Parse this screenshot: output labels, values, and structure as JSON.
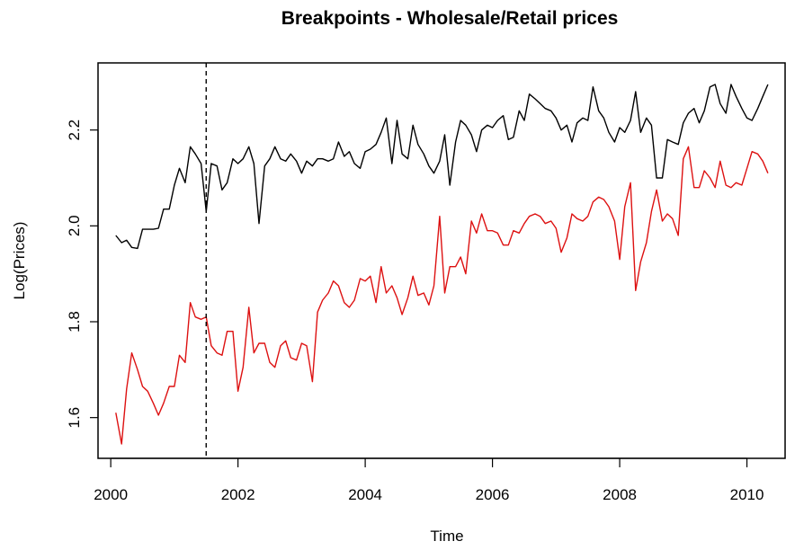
{
  "chart_data": {
    "type": "line",
    "title": "Breakpoints - Wholesale/Retail prices",
    "xlabel": "Time",
    "ylabel": "Log(Prices)",
    "xlim": [
      1999.8,
      2010.6
    ],
    "ylim": [
      1.515,
      2.34
    ],
    "x_ticks": [
      "2000",
      "2002",
      "2004",
      "2006",
      "2008",
      "2010"
    ],
    "y_ticks": [
      "1.6",
      "1.8",
      "2.0",
      "2.2"
    ],
    "grid": false,
    "legend": "none",
    "breakpoint": 2001.5,
    "breakpoint_style": "dashed",
    "series": [
      {
        "color": "#000000",
        "points": [
          [
            2000.08,
            1.98
          ],
          [
            2000.17,
            1.965
          ],
          [
            2000.25,
            1.97
          ],
          [
            2000.33,
            1.955
          ],
          [
            2000.42,
            1.953
          ],
          [
            2000.5,
            1.993
          ],
          [
            2000.58,
            1.993
          ],
          [
            2000.67,
            1.993
          ],
          [
            2000.75,
            1.995
          ],
          [
            2000.83,
            2.035
          ],
          [
            2000.92,
            2.035
          ],
          [
            2001.0,
            2.085
          ],
          [
            2001.08,
            2.12
          ],
          [
            2001.17,
            2.09
          ],
          [
            2001.25,
            2.165
          ],
          [
            2001.33,
            2.15
          ],
          [
            2001.42,
            2.13
          ],
          [
            2001.5,
            2.03
          ],
          [
            2001.58,
            2.13
          ],
          [
            2001.67,
            2.125
          ],
          [
            2001.75,
            2.075
          ],
          [
            2001.83,
            2.09
          ],
          [
            2001.92,
            2.14
          ],
          [
            2002.0,
            2.13
          ],
          [
            2002.08,
            2.14
          ],
          [
            2002.17,
            2.165
          ],
          [
            2002.25,
            2.13
          ],
          [
            2002.33,
            2.005
          ],
          [
            2002.42,
            2.125
          ],
          [
            2002.5,
            2.14
          ],
          [
            2002.58,
            2.165
          ],
          [
            2002.67,
            2.14
          ],
          [
            2002.75,
            2.135
          ],
          [
            2002.83,
            2.15
          ],
          [
            2002.92,
            2.135
          ],
          [
            2003.0,
            2.11
          ],
          [
            2003.08,
            2.135
          ],
          [
            2003.17,
            2.125
          ],
          [
            2003.25,
            2.14
          ],
          [
            2003.33,
            2.14
          ],
          [
            2003.42,
            2.135
          ],
          [
            2003.5,
            2.14
          ],
          [
            2003.58,
            2.175
          ],
          [
            2003.67,
            2.145
          ],
          [
            2003.75,
            2.155
          ],
          [
            2003.83,
            2.13
          ],
          [
            2003.92,
            2.12
          ],
          [
            2004.0,
            2.155
          ],
          [
            2004.08,
            2.16
          ],
          [
            2004.17,
            2.17
          ],
          [
            2004.25,
            2.195
          ],
          [
            2004.33,
            2.225
          ],
          [
            2004.42,
            2.13
          ],
          [
            2004.5,
            2.22
          ],
          [
            2004.58,
            2.15
          ],
          [
            2004.67,
            2.14
          ],
          [
            2004.75,
            2.21
          ],
          [
            2004.83,
            2.17
          ],
          [
            2004.92,
            2.15
          ],
          [
            2005.0,
            2.125
          ],
          [
            2005.08,
            2.11
          ],
          [
            2005.17,
            2.135
          ],
          [
            2005.25,
            2.19
          ],
          [
            2005.33,
            2.085
          ],
          [
            2005.42,
            2.175
          ],
          [
            2005.5,
            2.22
          ],
          [
            2005.58,
            2.21
          ],
          [
            2005.67,
            2.19
          ],
          [
            2005.75,
            2.155
          ],
          [
            2005.83,
            2.2
          ],
          [
            2005.92,
            2.21
          ],
          [
            2006.0,
            2.205
          ],
          [
            2006.08,
            2.22
          ],
          [
            2006.17,
            2.23
          ],
          [
            2006.25,
            2.18
          ],
          [
            2006.33,
            2.185
          ],
          [
            2006.42,
            2.24
          ],
          [
            2006.5,
            2.22
          ],
          [
            2006.58,
            2.275
          ],
          [
            2006.67,
            2.265
          ],
          [
            2006.75,
            2.255
          ],
          [
            2006.83,
            2.245
          ],
          [
            2006.92,
            2.24
          ],
          [
            2007.0,
            2.225
          ],
          [
            2007.08,
            2.2
          ],
          [
            2007.17,
            2.21
          ],
          [
            2007.25,
            2.175
          ],
          [
            2007.33,
            2.215
          ],
          [
            2007.42,
            2.225
          ],
          [
            2007.5,
            2.22
          ],
          [
            2007.58,
            2.29
          ],
          [
            2007.67,
            2.24
          ],
          [
            2007.75,
            2.225
          ],
          [
            2007.83,
            2.195
          ],
          [
            2007.92,
            2.175
          ],
          [
            2008.0,
            2.205
          ],
          [
            2008.08,
            2.195
          ],
          [
            2008.17,
            2.22
          ],
          [
            2008.25,
            2.28
          ],
          [
            2008.33,
            2.195
          ],
          [
            2008.42,
            2.225
          ],
          [
            2008.5,
            2.21
          ],
          [
            2008.58,
            2.1
          ],
          [
            2008.67,
            2.1
          ],
          [
            2008.75,
            2.18
          ],
          [
            2008.83,
            2.175
          ],
          [
            2008.92,
            2.17
          ],
          [
            2009.0,
            2.215
          ],
          [
            2009.08,
            2.235
          ],
          [
            2009.17,
            2.245
          ],
          [
            2009.25,
            2.215
          ],
          [
            2009.33,
            2.24
          ],
          [
            2009.42,
            2.29
          ],
          [
            2009.5,
            2.295
          ],
          [
            2009.58,
            2.255
          ],
          [
            2009.67,
            2.235
          ],
          [
            2009.75,
            2.295
          ],
          [
            2009.83,
            2.27
          ],
          [
            2009.92,
            2.245
          ],
          [
            2010.0,
            2.225
          ],
          [
            2010.08,
            2.22
          ],
          [
            2010.17,
            2.245
          ],
          [
            2010.25,
            2.27
          ],
          [
            2010.33,
            2.295
          ]
        ]
      },
      {
        "color": "#dd1111",
        "points": [
          [
            2000.08,
            1.61
          ],
          [
            2000.17,
            1.545
          ],
          [
            2000.25,
            1.66
          ],
          [
            2000.33,
            1.735
          ],
          [
            2000.42,
            1.7
          ],
          [
            2000.5,
            1.665
          ],
          [
            2000.58,
            1.655
          ],
          [
            2000.67,
            1.63
          ],
          [
            2000.75,
            1.605
          ],
          [
            2000.83,
            1.63
          ],
          [
            2000.92,
            1.665
          ],
          [
            2001.0,
            1.665
          ],
          [
            2001.08,
            1.73
          ],
          [
            2001.17,
            1.715
          ],
          [
            2001.25,
            1.84
          ],
          [
            2001.33,
            1.81
          ],
          [
            2001.42,
            1.805
          ],
          [
            2001.5,
            1.81
          ],
          [
            2001.58,
            1.75
          ],
          [
            2001.67,
            1.735
          ],
          [
            2001.75,
            1.73
          ],
          [
            2001.83,
            1.78
          ],
          [
            2001.92,
            1.78
          ],
          [
            2002.0,
            1.655
          ],
          [
            2002.08,
            1.705
          ],
          [
            2002.17,
            1.83
          ],
          [
            2002.25,
            1.735
          ],
          [
            2002.33,
            1.755
          ],
          [
            2002.42,
            1.755
          ],
          [
            2002.5,
            1.715
          ],
          [
            2002.58,
            1.705
          ],
          [
            2002.67,
            1.75
          ],
          [
            2002.75,
            1.76
          ],
          [
            2002.83,
            1.725
          ],
          [
            2002.92,
            1.72
          ],
          [
            2003.0,
            1.755
          ],
          [
            2003.08,
            1.75
          ],
          [
            2003.17,
            1.675
          ],
          [
            2003.25,
            1.82
          ],
          [
            2003.33,
            1.845
          ],
          [
            2003.42,
            1.86
          ],
          [
            2003.5,
            1.885
          ],
          [
            2003.58,
            1.875
          ],
          [
            2003.67,
            1.84
          ],
          [
            2003.75,
            1.83
          ],
          [
            2003.83,
            1.845
          ],
          [
            2003.92,
            1.89
          ],
          [
            2004.0,
            1.885
          ],
          [
            2004.08,
            1.895
          ],
          [
            2004.17,
            1.84
          ],
          [
            2004.25,
            1.915
          ],
          [
            2004.33,
            1.86
          ],
          [
            2004.42,
            1.875
          ],
          [
            2004.5,
            1.85
          ],
          [
            2004.58,
            1.815
          ],
          [
            2004.67,
            1.85
          ],
          [
            2004.75,
            1.895
          ],
          [
            2004.83,
            1.855
          ],
          [
            2004.92,
            1.86
          ],
          [
            2005.0,
            1.835
          ],
          [
            2005.08,
            1.875
          ],
          [
            2005.17,
            2.02
          ],
          [
            2005.25,
            1.86
          ],
          [
            2005.33,
            1.915
          ],
          [
            2005.42,
            1.915
          ],
          [
            2005.5,
            1.935
          ],
          [
            2005.58,
            1.9
          ],
          [
            2005.67,
            2.01
          ],
          [
            2005.75,
            1.985
          ],
          [
            2005.83,
            2.025
          ],
          [
            2005.92,
            1.99
          ],
          [
            2006.0,
            1.99
          ],
          [
            2006.08,
            1.985
          ],
          [
            2006.17,
            1.96
          ],
          [
            2006.25,
            1.96
          ],
          [
            2006.33,
            1.99
          ],
          [
            2006.42,
            1.985
          ],
          [
            2006.5,
            2.005
          ],
          [
            2006.58,
            2.02
          ],
          [
            2006.67,
            2.025
          ],
          [
            2006.75,
            2.02
          ],
          [
            2006.83,
            2.005
          ],
          [
            2006.92,
            2.01
          ],
          [
            2007.0,
            1.995
          ],
          [
            2007.08,
            1.945
          ],
          [
            2007.17,
            1.975
          ],
          [
            2007.25,
            2.025
          ],
          [
            2007.33,
            2.015
          ],
          [
            2007.42,
            2.01
          ],
          [
            2007.5,
            2.02
          ],
          [
            2007.58,
            2.05
          ],
          [
            2007.67,
            2.06
          ],
          [
            2007.75,
            2.055
          ],
          [
            2007.83,
            2.04
          ],
          [
            2007.92,
            2.01
          ],
          [
            2008.0,
            1.93
          ],
          [
            2008.08,
            2.04
          ],
          [
            2008.17,
            2.09
          ],
          [
            2008.25,
            1.865
          ],
          [
            2008.33,
            1.925
          ],
          [
            2008.42,
            1.965
          ],
          [
            2008.5,
            2.03
          ],
          [
            2008.58,
            2.075
          ],
          [
            2008.67,
            2.01
          ],
          [
            2008.75,
            2.025
          ],
          [
            2008.83,
            2.015
          ],
          [
            2008.92,
            1.98
          ],
          [
            2009.0,
            2.14
          ],
          [
            2009.08,
            2.165
          ],
          [
            2009.17,
            2.08
          ],
          [
            2009.25,
            2.08
          ],
          [
            2009.33,
            2.115
          ],
          [
            2009.42,
            2.1
          ],
          [
            2009.5,
            2.08
          ],
          [
            2009.58,
            2.135
          ],
          [
            2009.67,
            2.085
          ],
          [
            2009.75,
            2.08
          ],
          [
            2009.83,
            2.09
          ],
          [
            2009.92,
            2.085
          ],
          [
            2010.0,
            2.12
          ],
          [
            2010.08,
            2.155
          ],
          [
            2010.17,
            2.15
          ],
          [
            2010.25,
            2.135
          ],
          [
            2010.33,
            2.11
          ]
        ]
      }
    ]
  }
}
